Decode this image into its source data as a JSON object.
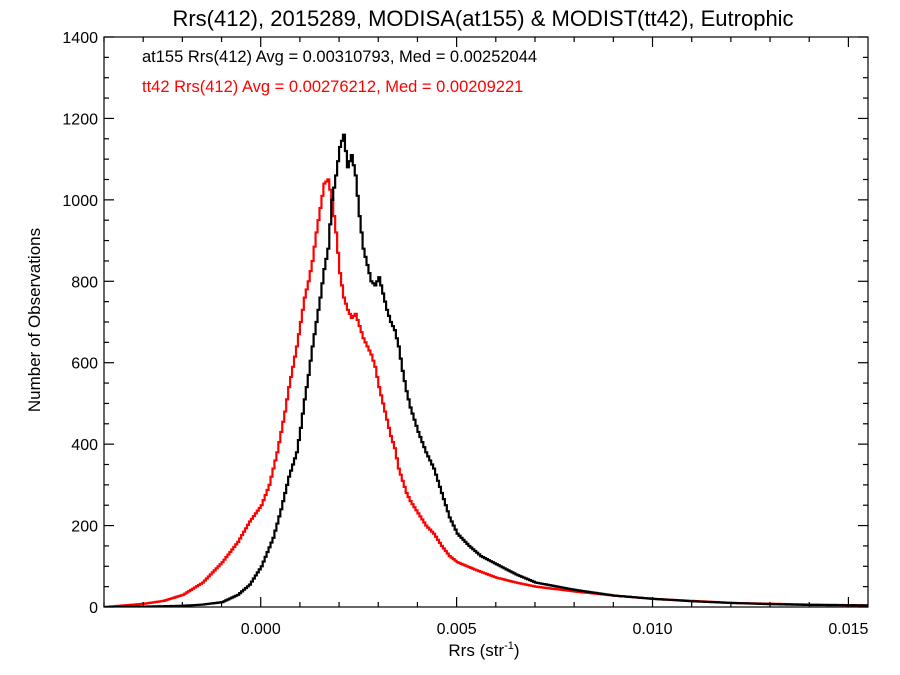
{
  "chart_data": {
    "type": "histogram-step",
    "title": "Rrs(412), 2015289, MODISA(at155) & MODIST(tt42), Eutrophic",
    "xlabel": "Rrs (str",
    "xlabel_sup": "-1",
    "xlabel_suffix": ")",
    "ylabel": "Number of Observations",
    "xlim": [
      -0.004,
      0.0155
    ],
    "ylim": [
      0,
      1400
    ],
    "xticks": [
      {
        "value": 0.0,
        "label": "0.000"
      },
      {
        "value": 0.005,
        "label": "0.005"
      },
      {
        "value": 0.01,
        "label": "0.010"
      },
      {
        "value": 0.015,
        "label": "0.015"
      }
    ],
    "yticks": [
      {
        "value": 0,
        "label": "0"
      },
      {
        "value": 200,
        "label": "200"
      },
      {
        "value": 400,
        "label": "400"
      },
      {
        "value": 600,
        "label": "600"
      },
      {
        "value": 800,
        "label": "800"
      },
      {
        "value": 1000,
        "label": "1000"
      },
      {
        "value": 1200,
        "label": "1200"
      },
      {
        "value": 1400,
        "label": "1400"
      }
    ],
    "annotations": [
      {
        "text": "at155 Rrs(412) Avg = 0.00310793, Med = 0.00252044",
        "color": "#000000"
      },
      {
        "text": "tt42 Rrs(412) Avg = 0.00276212, Med = 0.00209221",
        "color": "#ff0000"
      }
    ],
    "series": [
      {
        "name": "at155",
        "color": "#000000",
        "points": [
          [
            -0.004,
            0
          ],
          [
            -0.003,
            1
          ],
          [
            -0.002,
            3
          ],
          [
            -0.0015,
            6
          ],
          [
            -0.001,
            12
          ],
          [
            -0.0006,
            30
          ],
          [
            -0.0003,
            55
          ],
          [
            0.0,
            100
          ],
          [
            0.0003,
            170
          ],
          [
            0.0005,
            240
          ],
          [
            0.0007,
            320
          ],
          [
            0.0009,
            380
          ],
          [
            0.001,
            440
          ],
          [
            0.0011,
            510
          ],
          [
            0.0012,
            570
          ],
          [
            0.0013,
            640
          ],
          [
            0.0014,
            700
          ],
          [
            0.0015,
            760
          ],
          [
            0.0016,
            830
          ],
          [
            0.0017,
            880
          ],
          [
            0.0018,
            1000
          ],
          [
            0.0019,
            1060
          ],
          [
            0.002,
            1130
          ],
          [
            0.0021,
            1160
          ],
          [
            0.0022,
            1080
          ],
          [
            0.0023,
            1110
          ],
          [
            0.0024,
            1060
          ],
          [
            0.0025,
            960
          ],
          [
            0.0026,
            880
          ],
          [
            0.0027,
            840
          ],
          [
            0.0028,
            800
          ],
          [
            0.0029,
            790
          ],
          [
            0.003,
            810
          ],
          [
            0.0031,
            770
          ],
          [
            0.0032,
            730
          ],
          [
            0.0033,
            700
          ],
          [
            0.0034,
            680
          ],
          [
            0.0035,
            640
          ],
          [
            0.0036,
            580
          ],
          [
            0.0037,
            530
          ],
          [
            0.0038,
            490
          ],
          [
            0.0039,
            460
          ],
          [
            0.004,
            430
          ],
          [
            0.0042,
            380
          ],
          [
            0.0044,
            340
          ],
          [
            0.0046,
            280
          ],
          [
            0.0048,
            220
          ],
          [
            0.005,
            180
          ],
          [
            0.0053,
            150
          ],
          [
            0.0056,
            125
          ],
          [
            0.006,
            105
          ],
          [
            0.0065,
            80
          ],
          [
            0.007,
            60
          ],
          [
            0.008,
            42
          ],
          [
            0.009,
            28
          ],
          [
            0.01,
            20
          ],
          [
            0.011,
            14
          ],
          [
            0.012,
            10
          ],
          [
            0.013,
            7
          ],
          [
            0.014,
            5
          ],
          [
            0.0155,
            4
          ]
        ]
      },
      {
        "name": "tt42",
        "color": "#ff0000",
        "points": [
          [
            -0.004,
            0
          ],
          [
            -0.0035,
            4
          ],
          [
            -0.003,
            8
          ],
          [
            -0.0025,
            15
          ],
          [
            -0.002,
            30
          ],
          [
            -0.0015,
            60
          ],
          [
            -0.001,
            110
          ],
          [
            -0.0006,
            160
          ],
          [
            -0.0003,
            210
          ],
          [
            0.0,
            250
          ],
          [
            0.0002,
            300
          ],
          [
            0.0004,
            380
          ],
          [
            0.0005,
            430
          ],
          [
            0.0006,
            480
          ],
          [
            0.0007,
            540
          ],
          [
            0.0008,
            590
          ],
          [
            0.0009,
            640
          ],
          [
            0.001,
            700
          ],
          [
            0.0011,
            760
          ],
          [
            0.0012,
            800
          ],
          [
            0.0013,
            850
          ],
          [
            0.0014,
            920
          ],
          [
            0.0015,
            980
          ],
          [
            0.0016,
            1040
          ],
          [
            0.0017,
            1050
          ],
          [
            0.0018,
            1000
          ],
          [
            0.0019,
            920
          ],
          [
            0.002,
            820
          ],
          [
            0.0021,
            760
          ],
          [
            0.0022,
            730
          ],
          [
            0.0023,
            710
          ],
          [
            0.0024,
            720
          ],
          [
            0.0025,
            690
          ],
          [
            0.0026,
            660
          ],
          [
            0.0027,
            640
          ],
          [
            0.0028,
            620
          ],
          [
            0.0029,
            590
          ],
          [
            0.003,
            540
          ],
          [
            0.0031,
            500
          ],
          [
            0.0032,
            460
          ],
          [
            0.0033,
            420
          ],
          [
            0.0034,
            390
          ],
          [
            0.0035,
            340
          ],
          [
            0.0036,
            310
          ],
          [
            0.0037,
            280
          ],
          [
            0.0038,
            260
          ],
          [
            0.004,
            230
          ],
          [
            0.0042,
            200
          ],
          [
            0.0044,
            180
          ],
          [
            0.0046,
            150
          ],
          [
            0.0048,
            125
          ],
          [
            0.005,
            110
          ],
          [
            0.0055,
            90
          ],
          [
            0.006,
            72
          ],
          [
            0.0065,
            60
          ],
          [
            0.007,
            50
          ],
          [
            0.008,
            38
          ],
          [
            0.009,
            28
          ],
          [
            0.01,
            20
          ],
          [
            0.011,
            15
          ],
          [
            0.012,
            10
          ],
          [
            0.013,
            8
          ],
          [
            0.014,
            6
          ],
          [
            0.0155,
            4
          ]
        ]
      }
    ]
  }
}
